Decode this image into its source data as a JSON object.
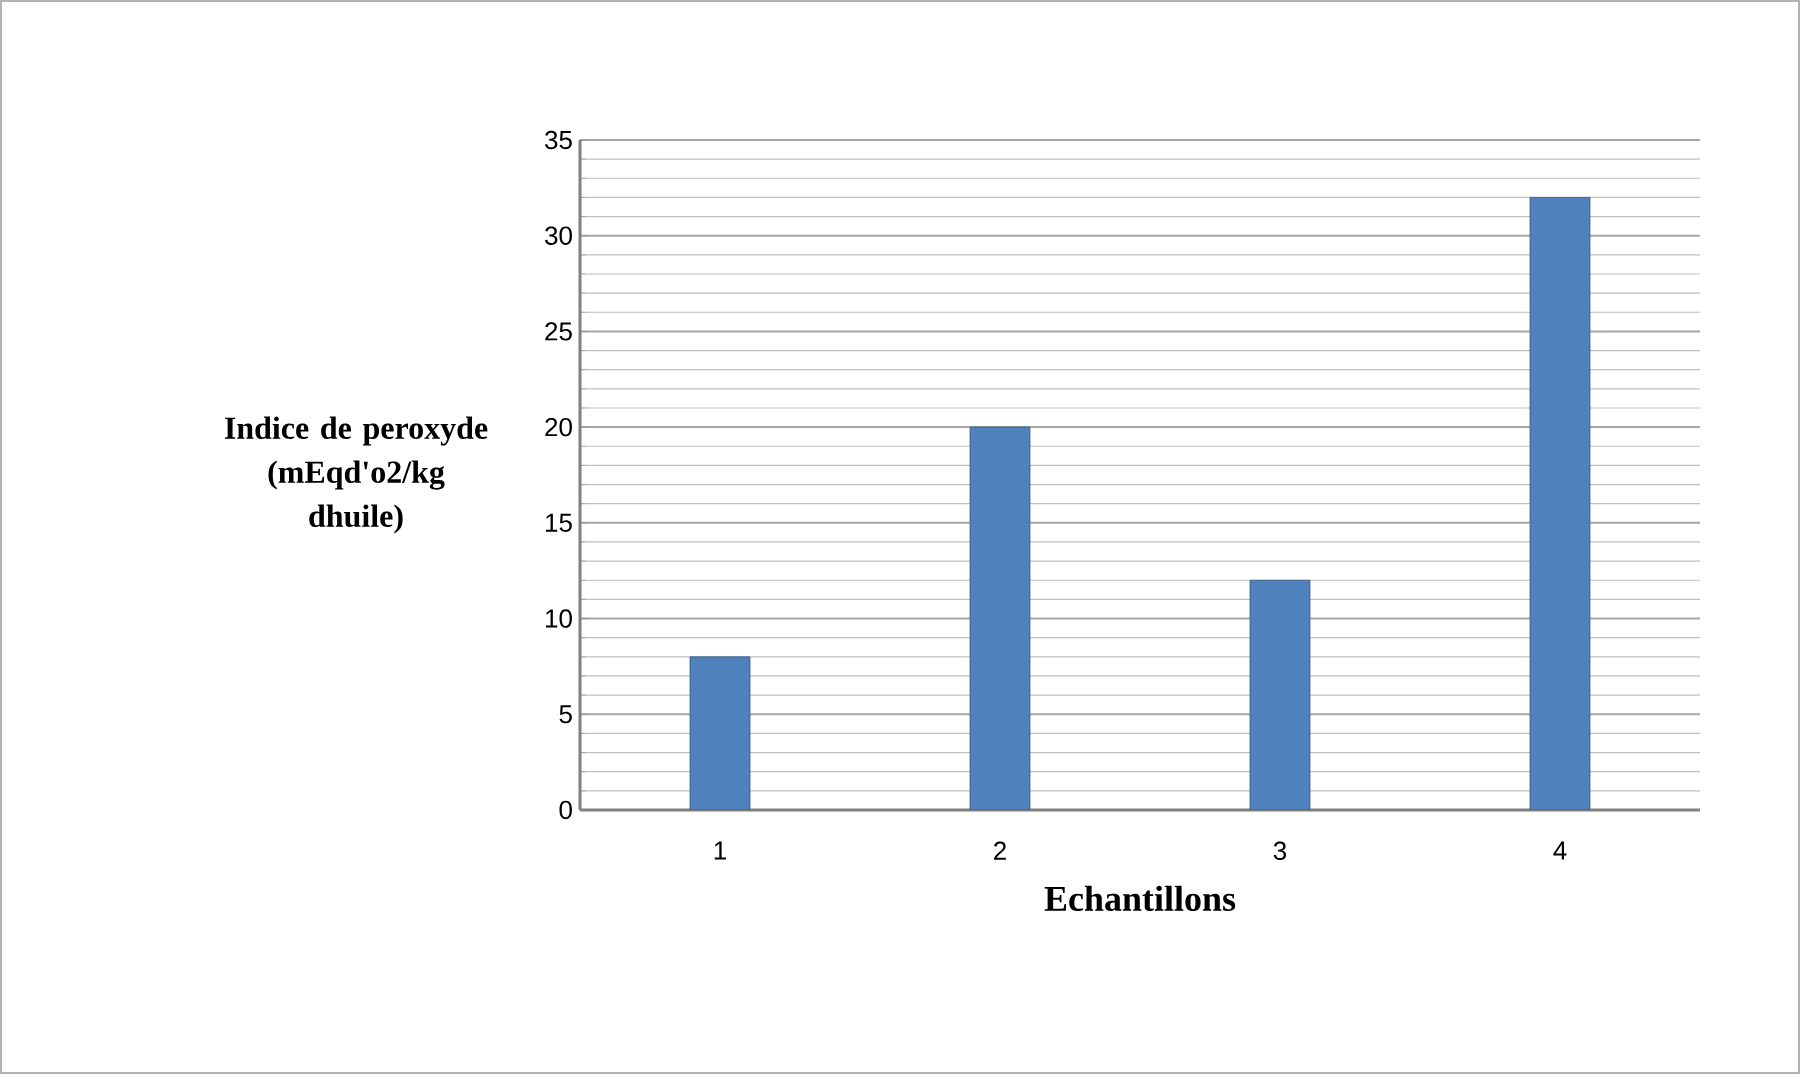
{
  "chart_data": {
    "type": "bar",
    "xlabel": "Echantillons",
    "ylabel": "Indice de peroxyde (mEqd'o2/kg dhuile)",
    "categories": [
      "1",
      "2",
      "3",
      "4"
    ],
    "values": [
      8,
      20,
      12,
      32
    ],
    "color": "#4f81bd",
    "ylim": [
      0,
      35
    ],
    "yticks": [
      0,
      5,
      10,
      15,
      20,
      25,
      30,
      35
    ],
    "grid": "y"
  }
}
